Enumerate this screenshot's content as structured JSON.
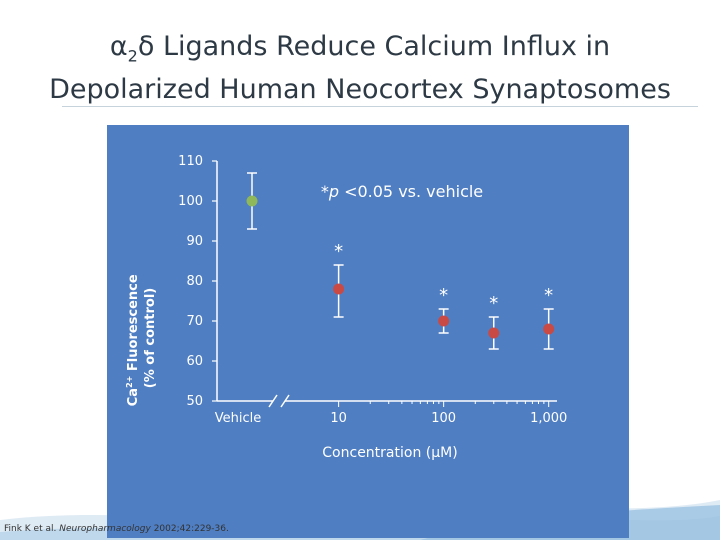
{
  "slide": {
    "title_line1_prefix": "α",
    "title_line1_sub": "2",
    "title_line1_rest": "δ Ligands Reduce Calcium Influx in",
    "title_line2": "Depolarized Human Neocortex Synaptosomes",
    "citation_author": "Fink K et al. ",
    "citation_journal": "Neuropharmacology",
    "citation_rest": " 2002;42:229-36."
  },
  "colors": {
    "panel": "#4f7ec2",
    "vehicle_point": "#8fb85a",
    "drug_point": "#c94a45",
    "axis": "#ffffff"
  },
  "chart_data": {
    "type": "scatter",
    "title": "",
    "ylabel_line1": "Ca",
    "ylabel_sup": "2+",
    "ylabel_line1_rest": " Fluorescence",
    "ylabel_line2": "(% of control)",
    "xlabel_prefix": "Concentration (",
    "xlabel_mu": "μ",
    "xlabel_suffix": "M)",
    "ylim": [
      50,
      110
    ],
    "yticks": [
      50,
      60,
      70,
      80,
      90,
      100,
      110
    ],
    "x_scale": "log",
    "xlim": [
      5,
      1200
    ],
    "xticks": [
      10,
      100,
      1000
    ],
    "xtick_labels": [
      "10",
      "100",
      "1,000"
    ],
    "vehicle_label": "Vehicle",
    "annotation_prefix": "*",
    "annotation_p": "p",
    "annotation_rest": " <0.05 vs. vehicle",
    "vehicle": {
      "x": "Vehicle",
      "y": 100,
      "err_low": 93,
      "err_high": 107
    },
    "points": [
      {
        "x": 10,
        "y": 78,
        "err_low": 71,
        "err_high": 84,
        "sig": "*"
      },
      {
        "x": 100,
        "y": 70,
        "err_low": 67,
        "err_high": 73,
        "sig": "*"
      },
      {
        "x": 300,
        "y": 67,
        "err_low": 63,
        "err_high": 71,
        "sig": "*"
      },
      {
        "x": 1000,
        "y": 68,
        "err_low": 63,
        "err_high": 73,
        "sig": "*"
      }
    ],
    "grid": false,
    "legend": "none"
  }
}
